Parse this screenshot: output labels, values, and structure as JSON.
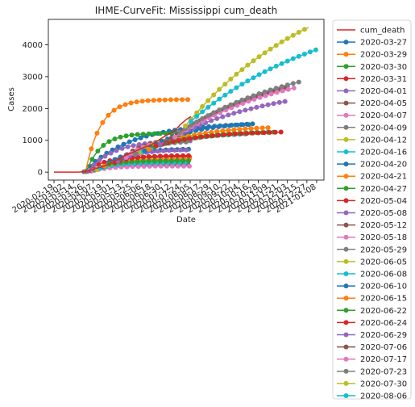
{
  "chart_data": {
    "type": "line",
    "title": "IHME-CurveFit: Mississippi cum_death",
    "xlabel": "Date",
    "ylabel": "Cases",
    "x_ticks": [
      "2020-02-19",
      "2020-03-02",
      "2020-03-14",
      "2020-03-26",
      "2020-04-07",
      "2020-04-19",
      "2020-05-01",
      "2020-05-13",
      "2020-05-25",
      "2020-06-06",
      "2020-06-18",
      "2020-06-30",
      "2020-07-12",
      "2020-07-24",
      "2020-08-05",
      "2020-08-17",
      "2020-08-29",
      "2020-09-10",
      "2020-09-22",
      "2020-10-04",
      "2020-10-16",
      "2020-10-28",
      "2020-11-09",
      "2020-11-21",
      "2020-12-03",
      "2020-12-15",
      "2020-12-27",
      "2021-01-08"
    ],
    "yticks": [
      0,
      1000,
      2000,
      3000,
      4000
    ],
    "ylim": [
      -250,
      4800
    ],
    "xlim": [
      "2020-02-12",
      "2021-01-17"
    ],
    "grid": false,
    "legend_position": "outside-right",
    "actual": {
      "name": "cum_death",
      "color": "#d62728",
      "x": [
        "2020-02-19",
        "2020-03-10",
        "2020-03-20",
        "2020-03-27",
        "2020-04-03",
        "2020-04-10",
        "2020-04-17",
        "2020-04-24",
        "2020-05-01",
        "2020-05-08",
        "2020-05-15",
        "2020-05-22",
        "2020-05-29",
        "2020-06-05",
        "2020-06-12",
        "2020-06-19",
        "2020-06-26",
        "2020-07-03",
        "2020-07-10",
        "2020-07-17",
        "2020-07-24",
        "2020-07-31",
        "2020-08-06"
      ],
      "y": [
        0,
        0,
        2,
        14,
        50,
        111,
        159,
        221,
        310,
        400,
        500,
        580,
        650,
        740,
        800,
        880,
        990,
        1100,
        1200,
        1300,
        1500,
        1650,
        1750
      ]
    },
    "series": [
      {
        "name": "2020-03-27",
        "color": "#1f77b4",
        "start": "2020-03-27",
        "end": "2020-10-20",
        "y0": 14,
        "y1": 1500,
        "k": 3.5
      },
      {
        "name": "2020-03-29",
        "color": "#ff7f0e",
        "start": "2020-03-29",
        "end": "2020-08-05",
        "y0": 20,
        "y1": 2280,
        "k": 7
      },
      {
        "name": "2020-03-30",
        "color": "#2ca02c",
        "start": "2020-03-30",
        "end": "2020-08-05",
        "y0": 22,
        "y1": 1220,
        "k": 7
      },
      {
        "name": "2020-03-31",
        "color": "#d62728",
        "start": "2020-03-31",
        "end": "2020-08-05",
        "y0": 24,
        "y1": 480,
        "k": 6
      },
      {
        "name": "2020-04-01",
        "color": "#9467bd",
        "start": "2020-04-01",
        "end": "2020-08-05",
        "y0": 26,
        "y1": 980,
        "k": 4
      },
      {
        "name": "2020-04-05",
        "color": "#8c564b",
        "start": "2020-04-05",
        "end": "2020-08-05",
        "y0": 40,
        "y1": 260,
        "k": 5
      },
      {
        "name": "2020-04-07",
        "color": "#e377c2",
        "start": "2020-04-07",
        "end": "2020-08-05",
        "y0": 50,
        "y1": 190,
        "k": 5
      },
      {
        "name": "2020-04-09",
        "color": "#7f7f7f",
        "start": "2020-04-09",
        "end": "2020-08-05",
        "y0": 60,
        "y1": 320,
        "k": 5
      },
      {
        "name": "2020-04-12",
        "color": "#bcbd22",
        "start": "2020-04-12",
        "end": "2020-08-05",
        "y0": 80,
        "y1": 380,
        "k": 5
      },
      {
        "name": "2020-04-16",
        "color": "#17becf",
        "start": "2020-04-16",
        "end": "2020-08-05",
        "y0": 120,
        "y1": 300,
        "k": 5
      },
      {
        "name": "2020-04-20",
        "color": "#1f77b4",
        "start": "2020-04-20",
        "end": "2020-08-05",
        "y0": 170,
        "y1": 720,
        "k": 4
      },
      {
        "name": "2020-04-21",
        "color": "#ff7f0e",
        "start": "2020-04-21",
        "end": "2020-08-05",
        "y0": 190,
        "y1": 420,
        "k": 4
      },
      {
        "name": "2020-04-27",
        "color": "#2ca02c",
        "start": "2020-04-27",
        "end": "2020-08-05",
        "y0": 250,
        "y1": 360,
        "k": 4
      },
      {
        "name": "2020-05-04",
        "color": "#d62728",
        "start": "2020-05-04",
        "end": "2020-08-05",
        "y0": 300,
        "y1": 520,
        "k": 4
      },
      {
        "name": "2020-05-08",
        "color": "#9467bd",
        "start": "2020-05-08",
        "end": "2020-08-05",
        "y0": 350,
        "y1": 700,
        "k": 3.5
      },
      {
        "name": "2020-05-12",
        "color": "#8c564b",
        "start": "2020-05-12",
        "end": "2020-08-05",
        "y0": 400,
        "y1": 1050,
        "k": 3
      },
      {
        "name": "2020-05-18",
        "color": "#e377c2",
        "start": "2020-05-18",
        "end": "2020-08-05",
        "y0": 460,
        "y1": 1020,
        "k": 3
      },
      {
        "name": "2020-05-29",
        "color": "#7f7f7f",
        "start": "2020-05-29",
        "end": "2020-08-05",
        "y0": 560,
        "y1": 950,
        "k": 3
      },
      {
        "name": "2020-06-05",
        "color": "#bcbd22",
        "start": "2020-06-05",
        "end": "2020-08-05",
        "y0": 620,
        "y1": 1100,
        "k": 2.5
      },
      {
        "name": "2020-06-08",
        "color": "#17becf",
        "start": "2020-06-08",
        "end": "2020-10-16",
        "y0": 650,
        "y1": 1200,
        "k": 2.5
      },
      {
        "name": "2020-06-10",
        "color": "#1f77b4",
        "start": "2020-06-10",
        "end": "2020-10-23",
        "y0": 670,
        "y1": 1520,
        "k": 2.5
      },
      {
        "name": "2020-06-15",
        "color": "#ff7f0e",
        "start": "2020-06-15",
        "end": "2020-11-12",
        "y0": 720,
        "y1": 1400,
        "k": 2.5
      },
      {
        "name": "2020-06-22",
        "color": "#2ca02c",
        "start": "2020-06-22",
        "end": "2020-11-20",
        "y0": 800,
        "y1": 1260,
        "k": 2.5
      },
      {
        "name": "2020-06-24",
        "color": "#d62728",
        "start": "2020-06-24",
        "end": "2020-11-27",
        "y0": 820,
        "y1": 1260,
        "k": 2.5
      },
      {
        "name": "2020-06-29",
        "color": "#9467bd",
        "start": "2020-06-29",
        "end": "2020-12-02",
        "y0": 870,
        "y1": 2230,
        "k": 1.2
      },
      {
        "name": "2020-07-06",
        "color": "#8c564b",
        "start": "2020-07-06",
        "end": "2020-12-06",
        "y0": 950,
        "y1": 2700,
        "k": 1
      },
      {
        "name": "2020-07-17",
        "color": "#e377c2",
        "start": "2020-07-17",
        "end": "2020-12-12",
        "y0": 1100,
        "y1": 2650,
        "k": 1
      },
      {
        "name": "2020-07-23",
        "color": "#7f7f7f",
        "start": "2020-07-23",
        "end": "2020-12-20",
        "y0": 1250,
        "y1": 2850,
        "k": 1
      },
      {
        "name": "2020-07-30",
        "color": "#bcbd22",
        "start": "2020-07-30",
        "end": "2020-12-29",
        "y0": 1450,
        "y1": 4550,
        "k": 0.9
      },
      {
        "name": "2020-08-06",
        "color": "#17becf",
        "start": "2020-08-06",
        "end": "2021-01-08",
        "y0": 1600,
        "y1": 3850,
        "k": 0.9
      }
    ]
  }
}
